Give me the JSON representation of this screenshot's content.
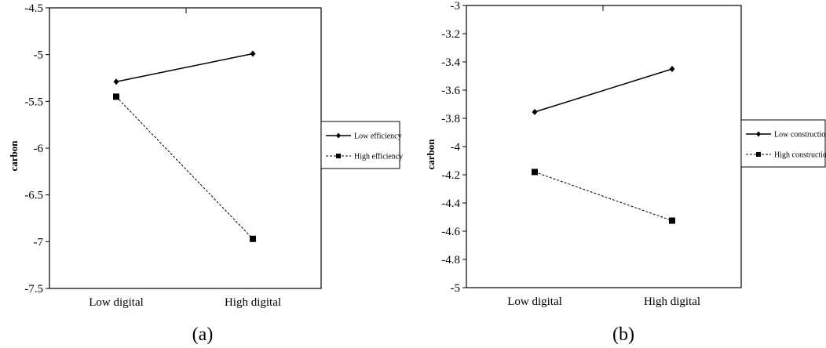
{
  "chart_data": [
    {
      "type": "line",
      "caption": "(a)",
      "ylabel": "carbon",
      "categories": [
        "Low digital",
        "High digital"
      ],
      "ylim": [
        -7.5,
        -4.5
      ],
      "yticks": [
        "-4.5",
        "-5",
        "-5.5",
        "-6",
        "-6.5",
        "-7",
        "-7.5"
      ],
      "series": [
        {
          "name": "Low efficiency",
          "values": [
            -5.29,
            -4.99
          ],
          "marker": "diamond",
          "dash": "solid"
        },
        {
          "name": "High efficiency",
          "values": [
            -5.45,
            -6.97
          ],
          "marker": "square",
          "dash": "dashed"
        }
      ],
      "legend": "right",
      "grid": false
    },
    {
      "type": "line",
      "caption": "(b)",
      "ylabel": "carbon",
      "categories": [
        "Low digital",
        "High digital"
      ],
      "ylim": [
        -5,
        -3
      ],
      "yticks": [
        "-3",
        "-3.2",
        "-3.4",
        "-3.6",
        "-3.8",
        "-4",
        "-4.2",
        "-4.4",
        "-4.6",
        "-4.8",
        "-5"
      ],
      "series": [
        {
          "name": "Low construction",
          "values": [
            -3.755,
            -3.45
          ],
          "marker": "diamond",
          "dash": "solid"
        },
        {
          "name": "High construction",
          "values": [
            -4.18,
            -4.525
          ],
          "marker": "square",
          "dash": "dashed"
        }
      ],
      "legend": "right",
      "grid": false
    }
  ]
}
